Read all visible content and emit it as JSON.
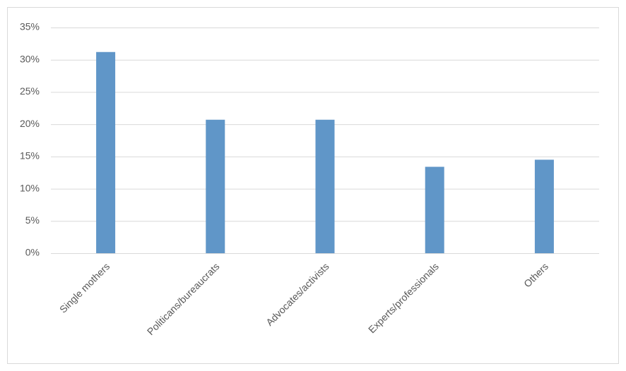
{
  "chart_data": {
    "type": "bar",
    "categories": [
      "Single mothers",
      "Politicans/bureaucrats",
      "Advocates/activists",
      "Experts/professionals",
      "Others"
    ],
    "values": [
      31.2,
      20.7,
      20.7,
      13.4,
      14.5
    ],
    "color": "#6096c8",
    "ylim": [
      0,
      35
    ],
    "yticks": [
      {
        "value": 0,
        "label": "0%"
      },
      {
        "value": 5,
        "label": "5%"
      },
      {
        "value": 10,
        "label": "10%"
      },
      {
        "value": 15,
        "label": "15%"
      },
      {
        "value": 20,
        "label": "20%"
      },
      {
        "value": 25,
        "label": "25%"
      },
      {
        "value": 30,
        "label": "30%"
      },
      {
        "value": 35,
        "label": "35%"
      }
    ],
    "grid": true
  }
}
